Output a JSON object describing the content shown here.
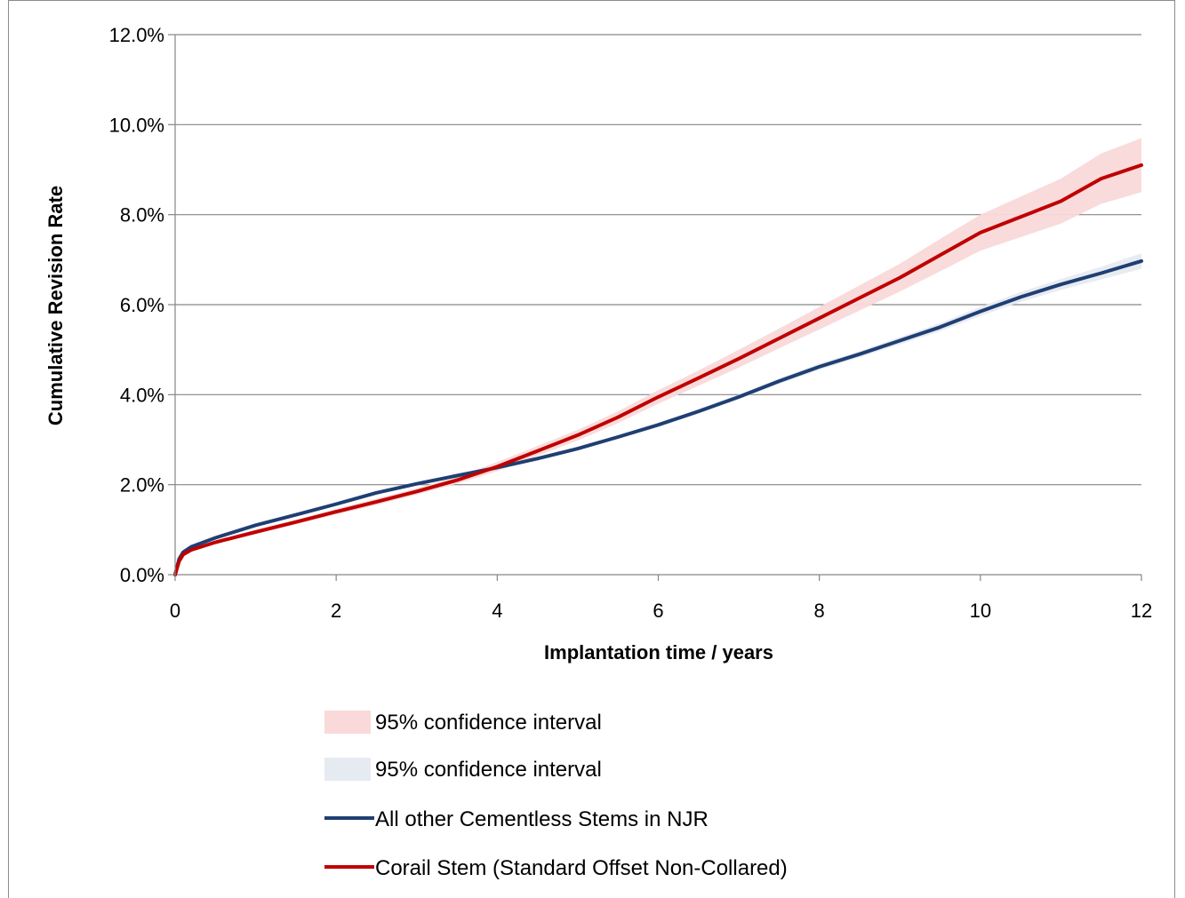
{
  "chart_data": {
    "type": "line",
    "title": "",
    "xlabel": "Implantation time  / years",
    "ylabel": "Cumulative Revision Rate",
    "xlim": [
      0,
      12
    ],
    "ylim": [
      0,
      12
    ],
    "x_ticks": [
      "0",
      "2",
      "4",
      "6",
      "8",
      "10",
      "12"
    ],
    "y_ticks": [
      "0.0%",
      "2.0%",
      "4.0%",
      "6.0%",
      "8.0%",
      "10.0%",
      "12.0%"
    ],
    "grid": "horizontal",
    "legend_position": "bottom",
    "legend": [
      {
        "label": "95% confidence interval",
        "type": "band",
        "color": "#f9d9d9"
      },
      {
        "label": "95% confidence interval",
        "type": "band",
        "color": "#e6eaf1"
      },
      {
        "label": "All other Cementless Stems in NJR",
        "type": "line",
        "color": "#1f3f73"
      },
      {
        "label": "Corail Stem (Standard Offset Non-Collared)",
        "type": "line",
        "color": "#c00000"
      }
    ],
    "series": [
      {
        "name": "All other Cementless Stems in NJR",
        "color": "#1f3f73",
        "x": [
          0,
          0.05,
          0.1,
          0.2,
          0.5,
          1,
          1.5,
          2,
          2.5,
          3,
          3.5,
          4,
          4.5,
          5,
          5.5,
          6,
          6.5,
          7,
          7.5,
          8,
          8.5,
          9,
          9.5,
          10,
          10.5,
          11,
          11.5,
          12
        ],
        "y": [
          0,
          0.35,
          0.5,
          0.62,
          0.82,
          1.1,
          1.33,
          1.57,
          1.82,
          2.02,
          2.2,
          2.38,
          2.58,
          2.8,
          3.06,
          3.33,
          3.63,
          3.95,
          4.3,
          4.62,
          4.9,
          5.2,
          5.5,
          5.85,
          6.17,
          6.45,
          6.7,
          6.97
        ],
        "ci_lower": [
          0,
          0.33,
          0.48,
          0.6,
          0.8,
          1.08,
          1.31,
          1.55,
          1.8,
          2.0,
          2.18,
          2.35,
          2.55,
          2.77,
          3.02,
          3.29,
          3.58,
          3.9,
          4.24,
          4.55,
          4.83,
          5.12,
          5.41,
          5.75,
          6.06,
          6.33,
          6.56,
          6.8
        ],
        "ci_upper": [
          0,
          0.37,
          0.52,
          0.64,
          0.84,
          1.12,
          1.35,
          1.59,
          1.84,
          2.04,
          2.22,
          2.41,
          2.61,
          2.83,
          3.1,
          3.37,
          3.68,
          4.0,
          4.36,
          4.69,
          4.97,
          5.28,
          5.59,
          5.95,
          6.28,
          6.57,
          6.84,
          7.14
        ]
      },
      {
        "name": "Corail Stem (Standard Offset Non-Collared)",
        "color": "#c00000",
        "x": [
          0,
          0.05,
          0.1,
          0.2,
          0.5,
          1,
          1.5,
          2,
          2.5,
          3,
          3.5,
          4,
          4.5,
          5,
          5.5,
          6,
          6.5,
          7,
          7.5,
          8,
          8.5,
          9,
          9.5,
          10,
          10.5,
          11,
          11.5,
          12
        ],
        "y": [
          0,
          0.3,
          0.45,
          0.55,
          0.72,
          0.95,
          1.17,
          1.4,
          1.62,
          1.85,
          2.1,
          2.4,
          2.75,
          3.1,
          3.5,
          3.95,
          4.37,
          4.8,
          5.25,
          5.7,
          6.15,
          6.6,
          7.1,
          7.6,
          7.95,
          8.3,
          8.8,
          9.1
        ],
        "ci_lower": [
          0,
          0.28,
          0.42,
          0.52,
          0.68,
          0.9,
          1.12,
          1.34,
          1.55,
          1.78,
          2.02,
          2.3,
          2.64,
          2.98,
          3.37,
          3.8,
          4.2,
          4.6,
          5.03,
          5.45,
          5.87,
          6.29,
          6.74,
          7.2,
          7.5,
          7.8,
          8.24,
          8.5
        ],
        "ci_upper": [
          0,
          0.32,
          0.48,
          0.58,
          0.76,
          1.0,
          1.22,
          1.46,
          1.69,
          1.92,
          2.18,
          2.5,
          2.86,
          3.22,
          3.63,
          4.1,
          4.54,
          5.0,
          5.47,
          5.95,
          6.43,
          6.91,
          7.46,
          8.0,
          8.4,
          8.8,
          9.36,
          9.7
        ]
      }
    ]
  }
}
